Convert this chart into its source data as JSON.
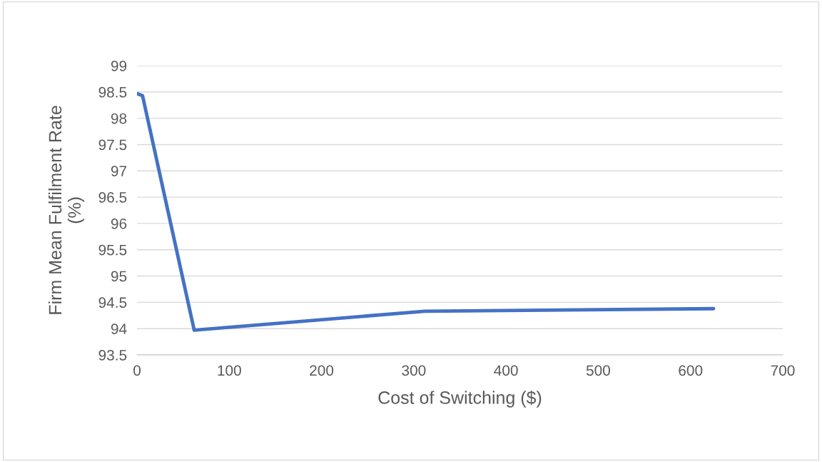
{
  "chart_data": {
    "type": "line",
    "xlabel": "Cost of Switching ($)",
    "ylabel": "Firm Mean Fulfilment Rate\n(%)",
    "series": [
      {
        "color": "#4472c4",
        "x": [
          0,
          6,
          62,
          312,
          625
        ],
        "values": [
          98.47,
          98.43,
          93.97,
          94.33,
          94.38
        ]
      }
    ],
    "xlim": [
      0,
      700
    ],
    "xticks": [
      0,
      100,
      200,
      300,
      400,
      500,
      600,
      700
    ],
    "ylim": [
      93.5,
      99
    ],
    "yticks": [
      93.5,
      94,
      94.5,
      95,
      95.5,
      96,
      96.5,
      97,
      97.5,
      98,
      98.5,
      99
    ],
    "grid": "y",
    "marker": "none",
    "line_style": "solid",
    "legend": false
  }
}
